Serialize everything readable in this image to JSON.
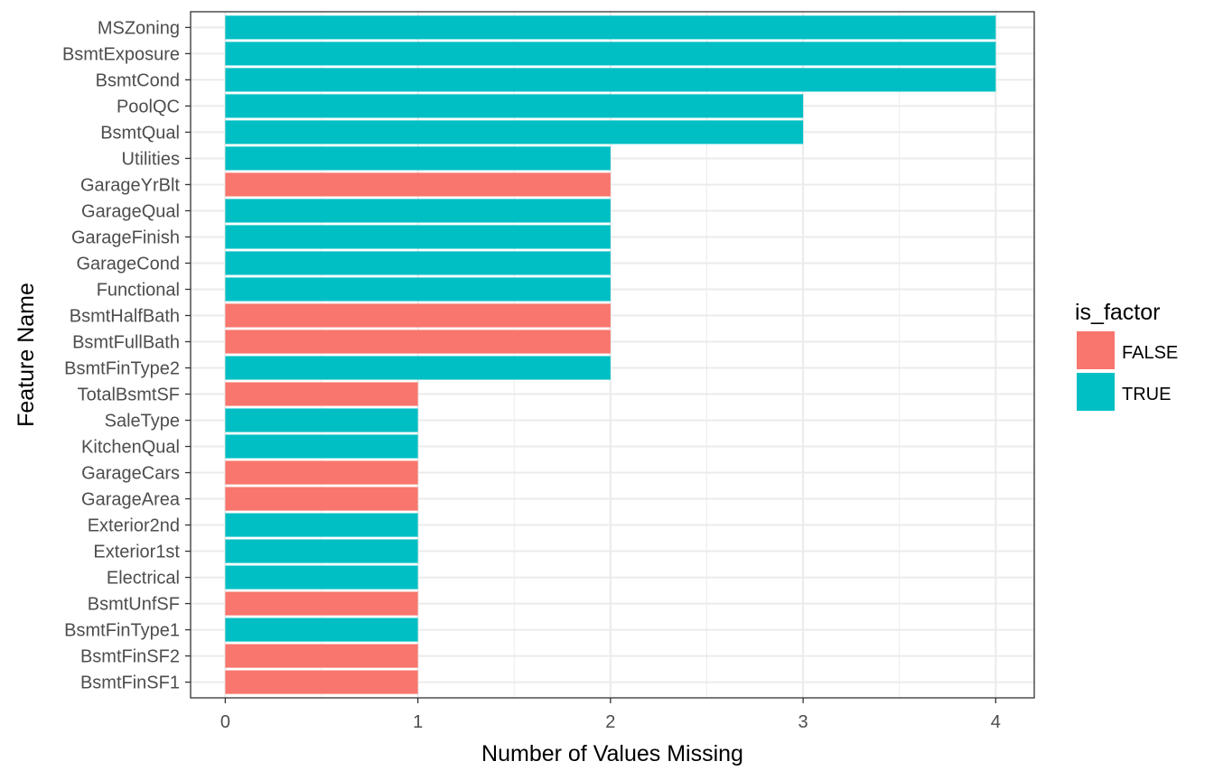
{
  "chart_data": {
    "type": "bar",
    "orientation": "horizontal",
    "xlabel": "Number of Values Missing",
    "ylabel": "Feature Name",
    "xlim": [
      -0.18,
      4.2
    ],
    "x_ticks": [
      0,
      1,
      2,
      3,
      4
    ],
    "grid": true,
    "legend": {
      "title": "is_factor",
      "position": "right",
      "items": [
        {
          "label": "FALSE",
          "color": "#F8766D"
        },
        {
          "label": "TRUE",
          "color": "#00BFC4"
        }
      ]
    },
    "categories": [
      "MSZoning",
      "BsmtExposure",
      "BsmtCond",
      "PoolQC",
      "BsmtQual",
      "Utilities",
      "GarageYrBlt",
      "GarageQual",
      "GarageFinish",
      "GarageCond",
      "Functional",
      "BsmtHalfBath",
      "BsmtFullBath",
      "BsmtFinType2",
      "TotalBsmtSF",
      "SaleType",
      "KitchenQual",
      "GarageCars",
      "GarageArea",
      "Exterior2nd",
      "Exterior1st",
      "Electrical",
      "BsmtUnfSF",
      "BsmtFinType1",
      "BsmtFinSF2",
      "BsmtFinSF1"
    ],
    "values": [
      4,
      4,
      4,
      3,
      3,
      2,
      2,
      2,
      2,
      2,
      2,
      2,
      2,
      2,
      1,
      1,
      1,
      1,
      1,
      1,
      1,
      1,
      1,
      1,
      1,
      1
    ],
    "is_factor": [
      "TRUE",
      "TRUE",
      "TRUE",
      "TRUE",
      "TRUE",
      "TRUE",
      "FALSE",
      "TRUE",
      "TRUE",
      "TRUE",
      "TRUE",
      "FALSE",
      "FALSE",
      "TRUE",
      "FALSE",
      "TRUE",
      "TRUE",
      "FALSE",
      "FALSE",
      "TRUE",
      "TRUE",
      "TRUE",
      "FALSE",
      "TRUE",
      "FALSE",
      "FALSE"
    ]
  }
}
